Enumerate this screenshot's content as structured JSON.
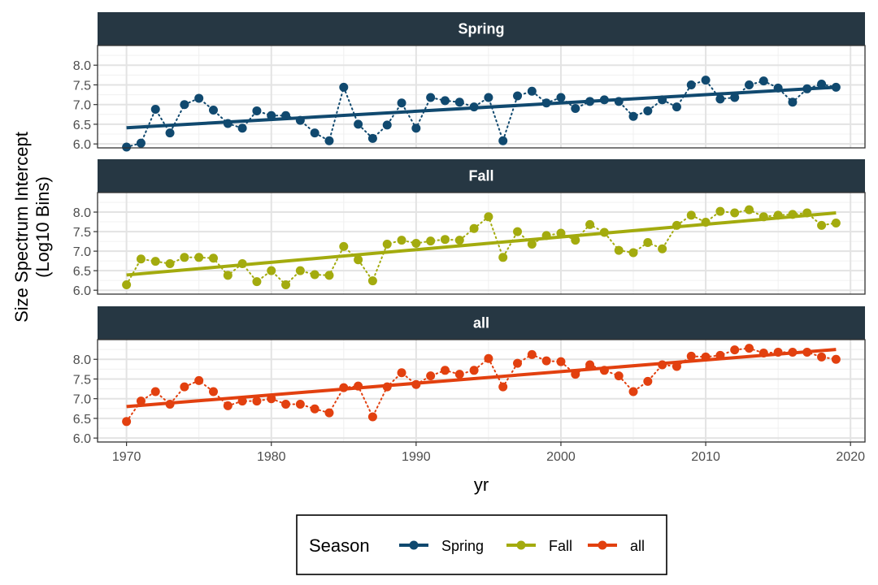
{
  "chart_data": {
    "type": "line",
    "facets": [
      "Spring",
      "Fall",
      "all"
    ],
    "xlabel": "yr",
    "ylabel_lines": [
      "Size Spectrum Intercept",
      "(Log10 Bins)"
    ],
    "xlim": [
      1968,
      2021
    ],
    "ylim": [
      5.9,
      8.5
    ],
    "x_ticks": [
      1970,
      1980,
      1990,
      2000,
      2010,
      2020
    ],
    "y_ticks": [
      6.0,
      6.5,
      7.0,
      7.5,
      8.0
    ],
    "x_tick_labels": [
      "1970",
      "1980",
      "1990",
      "2000",
      "2010",
      "2020"
    ],
    "y_tick_labels": [
      "6.0",
      "6.5",
      "7.0",
      "7.5",
      "8.0"
    ],
    "grid": true,
    "legend": {
      "title": "Season",
      "position": "bottom"
    },
    "x": [
      1970,
      1971,
      1972,
      1973,
      1974,
      1975,
      1976,
      1977,
      1978,
      1979,
      1980,
      1981,
      1982,
      1983,
      1984,
      1985,
      1986,
      1987,
      1988,
      1989,
      1990,
      1991,
      1992,
      1993,
      1994,
      1995,
      1996,
      1997,
      1998,
      1999,
      2000,
      2001,
      2002,
      2003,
      2004,
      2005,
      2006,
      2007,
      2008,
      2009,
      2010,
      2011,
      2012,
      2013,
      2014,
      2015,
      2016,
      2017,
      2018,
      2019
    ],
    "series": [
      {
        "name": "Spring",
        "color": "#10496f",
        "values": [
          5.92,
          6.02,
          6.88,
          6.28,
          7.0,
          7.16,
          6.86,
          6.52,
          6.4,
          6.84,
          6.72,
          6.72,
          6.6,
          6.28,
          6.08,
          7.44,
          6.5,
          6.14,
          6.48,
          7.04,
          6.4,
          7.18,
          7.1,
          7.06,
          6.94,
          7.18,
          6.08,
          7.22,
          7.34,
          7.04,
          7.18,
          6.9,
          7.08,
          7.12,
          7.08,
          6.7,
          6.84,
          7.12,
          6.94,
          7.5,
          7.62,
          7.14,
          7.18,
          7.5,
          7.6,
          7.42,
          7.06,
          7.4,
          7.52,
          7.44
        ],
        "trend": [
          6.41,
          7.44
        ]
      },
      {
        "name": "Fall",
        "color": "#a3ab0e",
        "values": [
          6.14,
          6.8,
          6.74,
          6.68,
          6.84,
          6.84,
          6.82,
          6.38,
          6.68,
          6.22,
          6.5,
          6.14,
          6.5,
          6.4,
          6.38,
          7.12,
          6.78,
          6.24,
          7.18,
          7.28,
          7.2,
          7.26,
          7.3,
          7.28,
          7.58,
          7.88,
          6.84,
          7.5,
          7.18,
          7.4,
          7.46,
          7.28,
          7.68,
          7.48,
          7.02,
          6.96,
          7.22,
          7.06,
          7.66,
          7.92,
          7.74,
          8.02,
          7.98,
          8.06,
          7.88,
          7.92,
          7.94,
          7.98,
          7.66,
          7.72
        ],
        "trend": [
          6.39,
          7.98
        ]
      },
      {
        "name": "all",
        "color": "#e2400f",
        "values": [
          6.42,
          6.94,
          7.18,
          6.86,
          7.3,
          7.46,
          7.18,
          6.82,
          6.94,
          6.94,
          7.0,
          6.86,
          6.86,
          6.74,
          6.64,
          7.28,
          7.32,
          6.54,
          7.3,
          7.66,
          7.36,
          7.58,
          7.72,
          7.62,
          7.72,
          8.02,
          7.3,
          7.9,
          8.12,
          7.96,
          7.94,
          7.62,
          7.86,
          7.72,
          7.58,
          7.18,
          7.44,
          7.86,
          7.82,
          8.08,
          8.06,
          8.1,
          8.24,
          8.28,
          8.16,
          8.18,
          8.18,
          8.18,
          8.06,
          8.0
        ],
        "trend": [
          6.8,
          8.25
        ]
      }
    ]
  }
}
